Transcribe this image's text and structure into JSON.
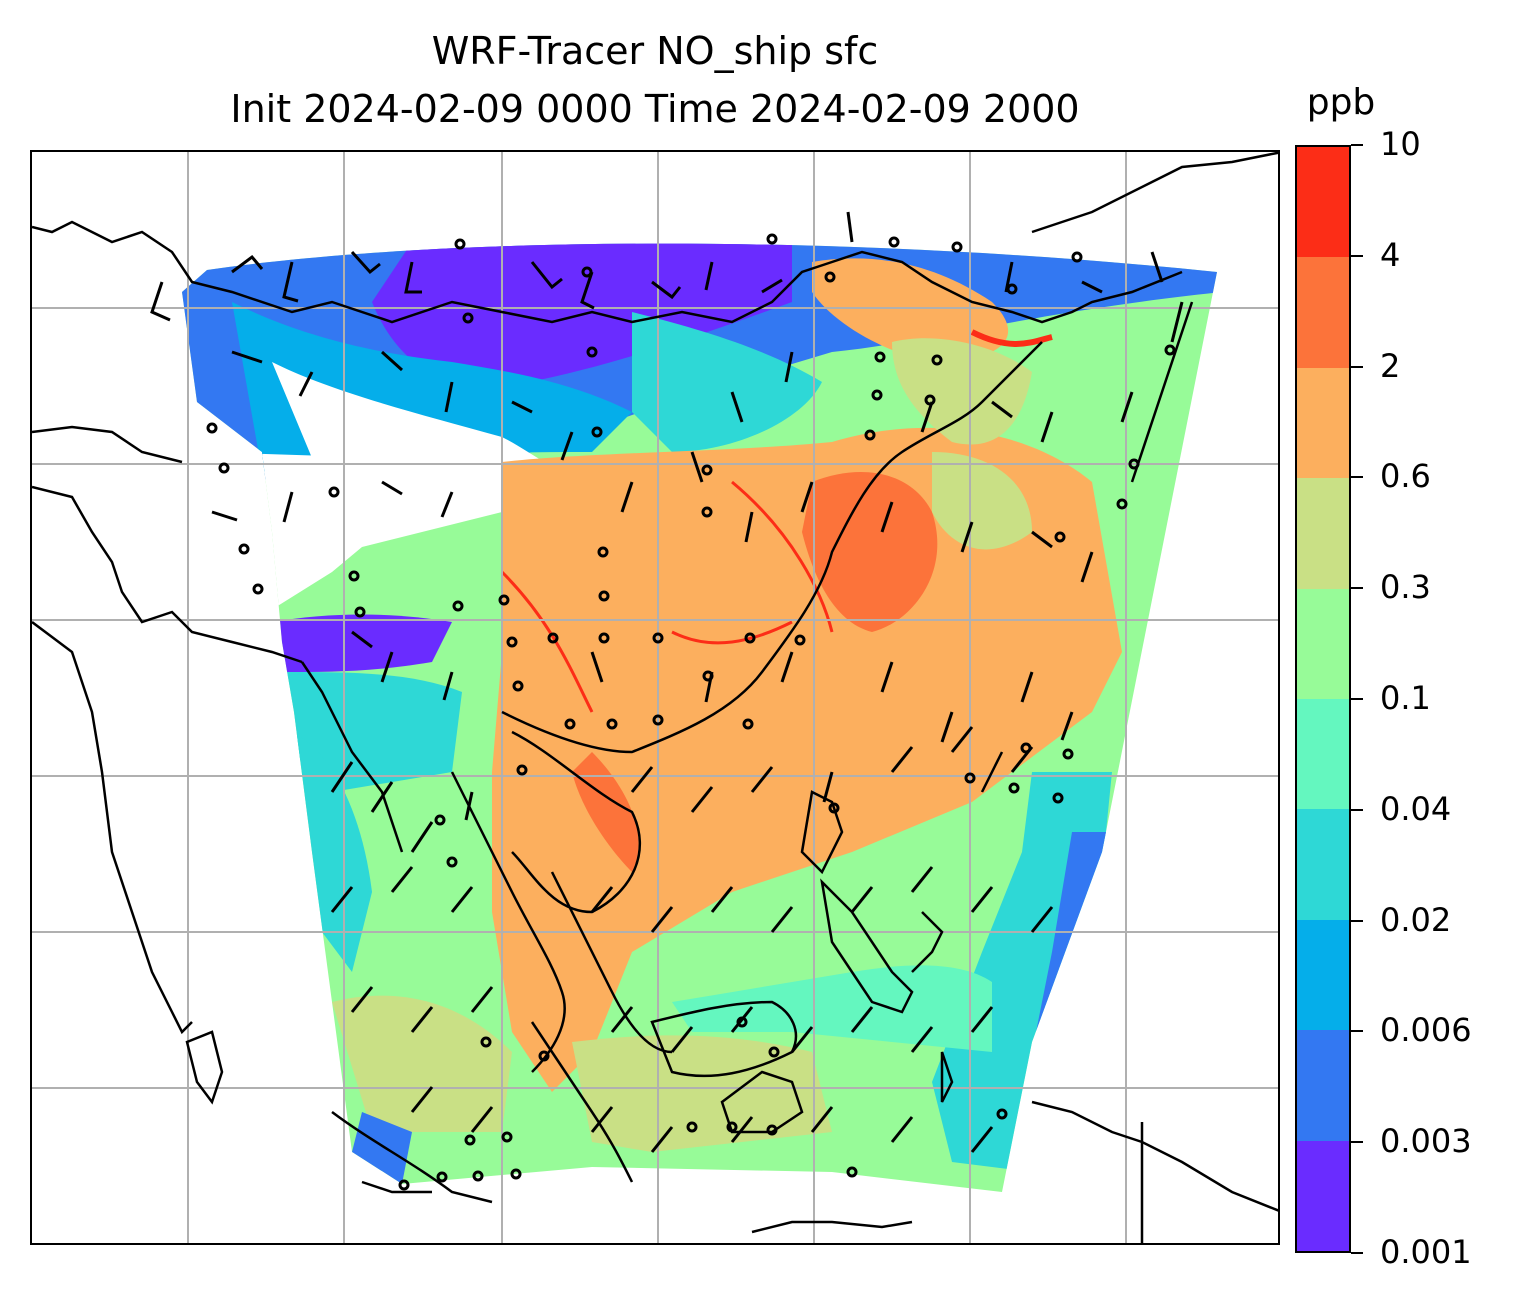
{
  "title": {
    "line1": "WRF-Tracer NO_ship sfc",
    "line2": "Init 2024-02-09 0000 Time 2024-02-09 2000"
  },
  "colorbar": {
    "unit": "ppb",
    "tick_labels": [
      "0.001",
      "0.003",
      "0.006",
      "0.02",
      "0.04",
      "0.1",
      "0.3",
      "0.6",
      "2",
      "4",
      "10"
    ],
    "colors": [
      "#6a2cff",
      "#3378f2",
      "#05aeea",
      "#2ed8d6",
      "#64f7bf",
      "#97fb98",
      "#c9e085",
      "#fcaf5e",
      "#fc733a",
      "#fc2d17"
    ]
  },
  "map": {
    "field": "NO_ship surface concentration",
    "overlays": [
      "coastlines",
      "country borders",
      "lat-lon gridlines",
      "wind barbs"
    ],
    "gridline_color": "#b0b0b0"
  }
}
